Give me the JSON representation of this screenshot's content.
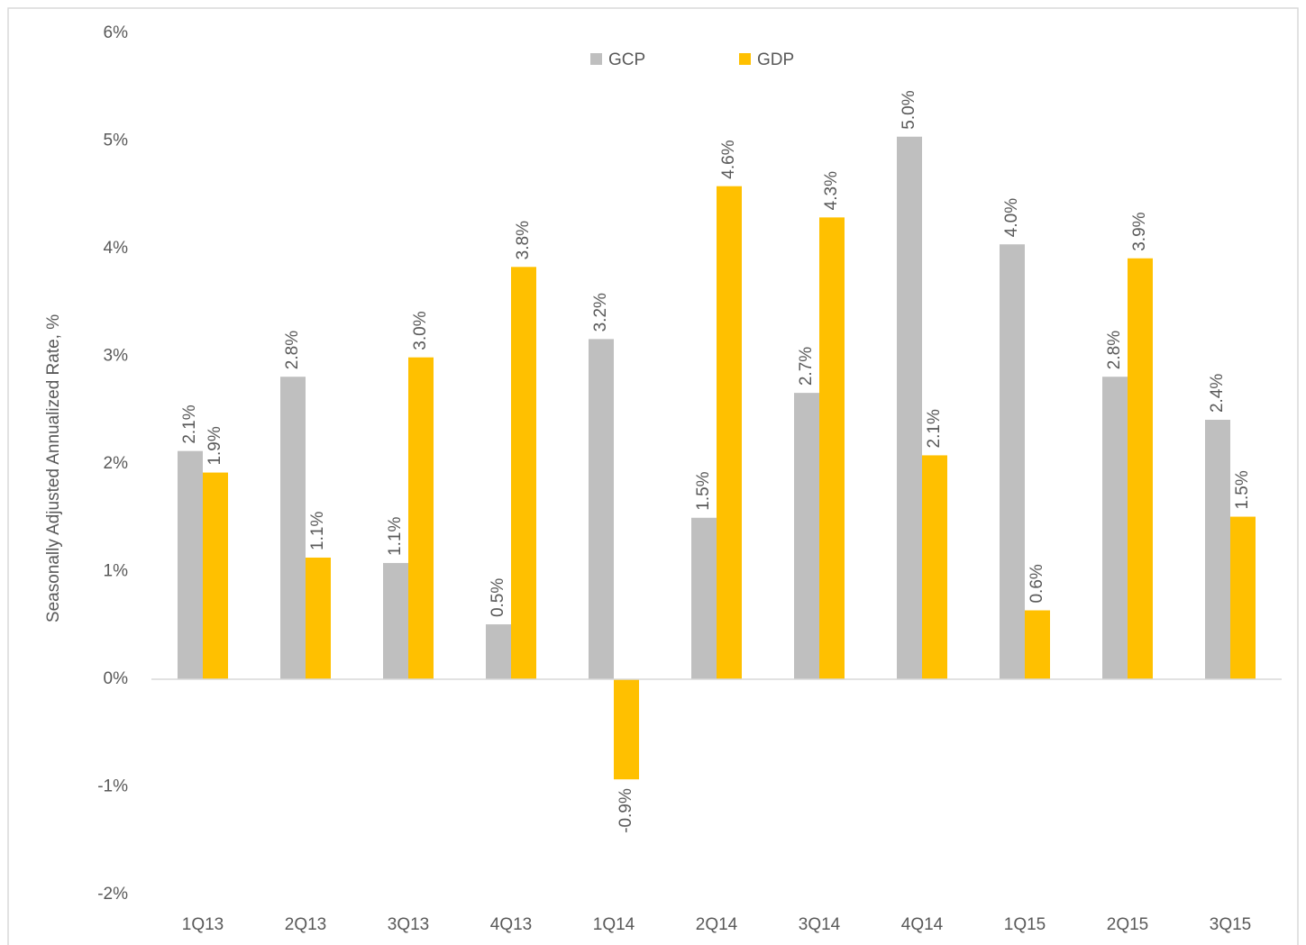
{
  "chart_data": {
    "type": "bar",
    "y_axis_label": "Seasonally Adjusted Annualized Rate, %",
    "categories": [
      "1Q13",
      "2Q13",
      "3Q13",
      "4Q13",
      "1Q14",
      "2Q14",
      "3Q14",
      "4Q14",
      "1Q15",
      "2Q15",
      "3Q15"
    ],
    "series": [
      {
        "name": "GCP",
        "color": "#bfbfbf",
        "values": [
          2.12,
          2.81,
          1.08,
          0.51,
          3.16,
          1.5,
          2.66,
          5.04,
          4.04,
          2.81,
          2.41
        ],
        "value_labels": [
          "2.1%",
          "2.8%",
          "1.1%",
          "0.5%",
          "3.2%",
          "1.5%",
          "2.7%",
          "5.0%",
          "4.0%",
          "2.8%",
          "2.4%"
        ]
      },
      {
        "name": "GDP",
        "color": "#ffc000",
        "values": [
          1.92,
          1.13,
          2.99,
          3.83,
          -0.93,
          4.58,
          4.29,
          2.08,
          0.64,
          3.91,
          1.51
        ],
        "value_labels": [
          "1.9%",
          "1.1%",
          "3.0%",
          "3.8%",
          "-0.9%",
          "4.6%",
          "4.3%",
          "2.1%",
          "0.6%",
          "3.9%",
          "1.5%"
        ]
      }
    ],
    "ylim": [
      -2,
      6
    ],
    "yticks": [
      {
        "value": -2,
        "label": "-2%"
      },
      {
        "value": -1,
        "label": "-1%"
      },
      {
        "value": 0,
        "label": "0%"
      },
      {
        "value": 1,
        "label": "1%"
      },
      {
        "value": 2,
        "label": "2%"
      },
      {
        "value": 3,
        "label": "3%"
      },
      {
        "value": 4,
        "label": "4%"
      },
      {
        "value": 5,
        "label": "5%"
      },
      {
        "value": 6,
        "label": "6%"
      }
    ],
    "legend_position": "top",
    "grid": false
  }
}
